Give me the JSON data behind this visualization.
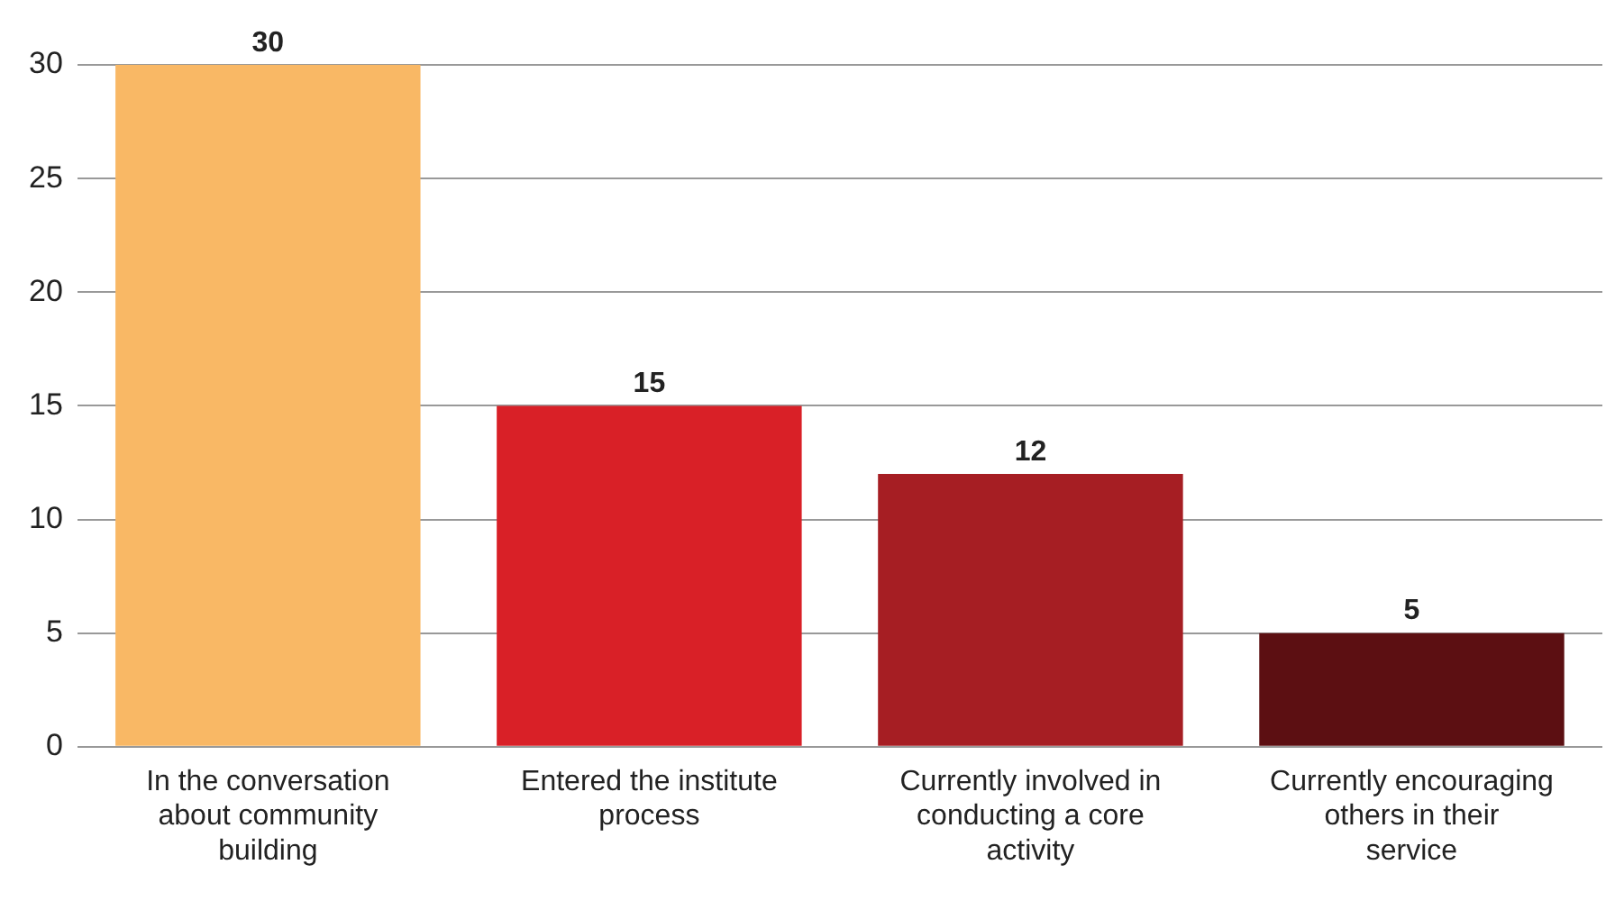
{
  "chart_data": {
    "type": "bar",
    "categories": [
      "In the conversation about community building",
      "Entered the institute process",
      "Currently involved in conducting a core activity",
      "Currently encouraging others in their service"
    ],
    "values": [
      30,
      15,
      12,
      5
    ],
    "colors": [
      "#f9b865",
      "#d92027",
      "#a61e23",
      "#5c0f12"
    ],
    "ylim": [
      0,
      30
    ],
    "yticks": [
      0,
      5,
      10,
      15,
      20,
      25,
      30
    ],
    "grid": "y",
    "data_labels": true
  }
}
